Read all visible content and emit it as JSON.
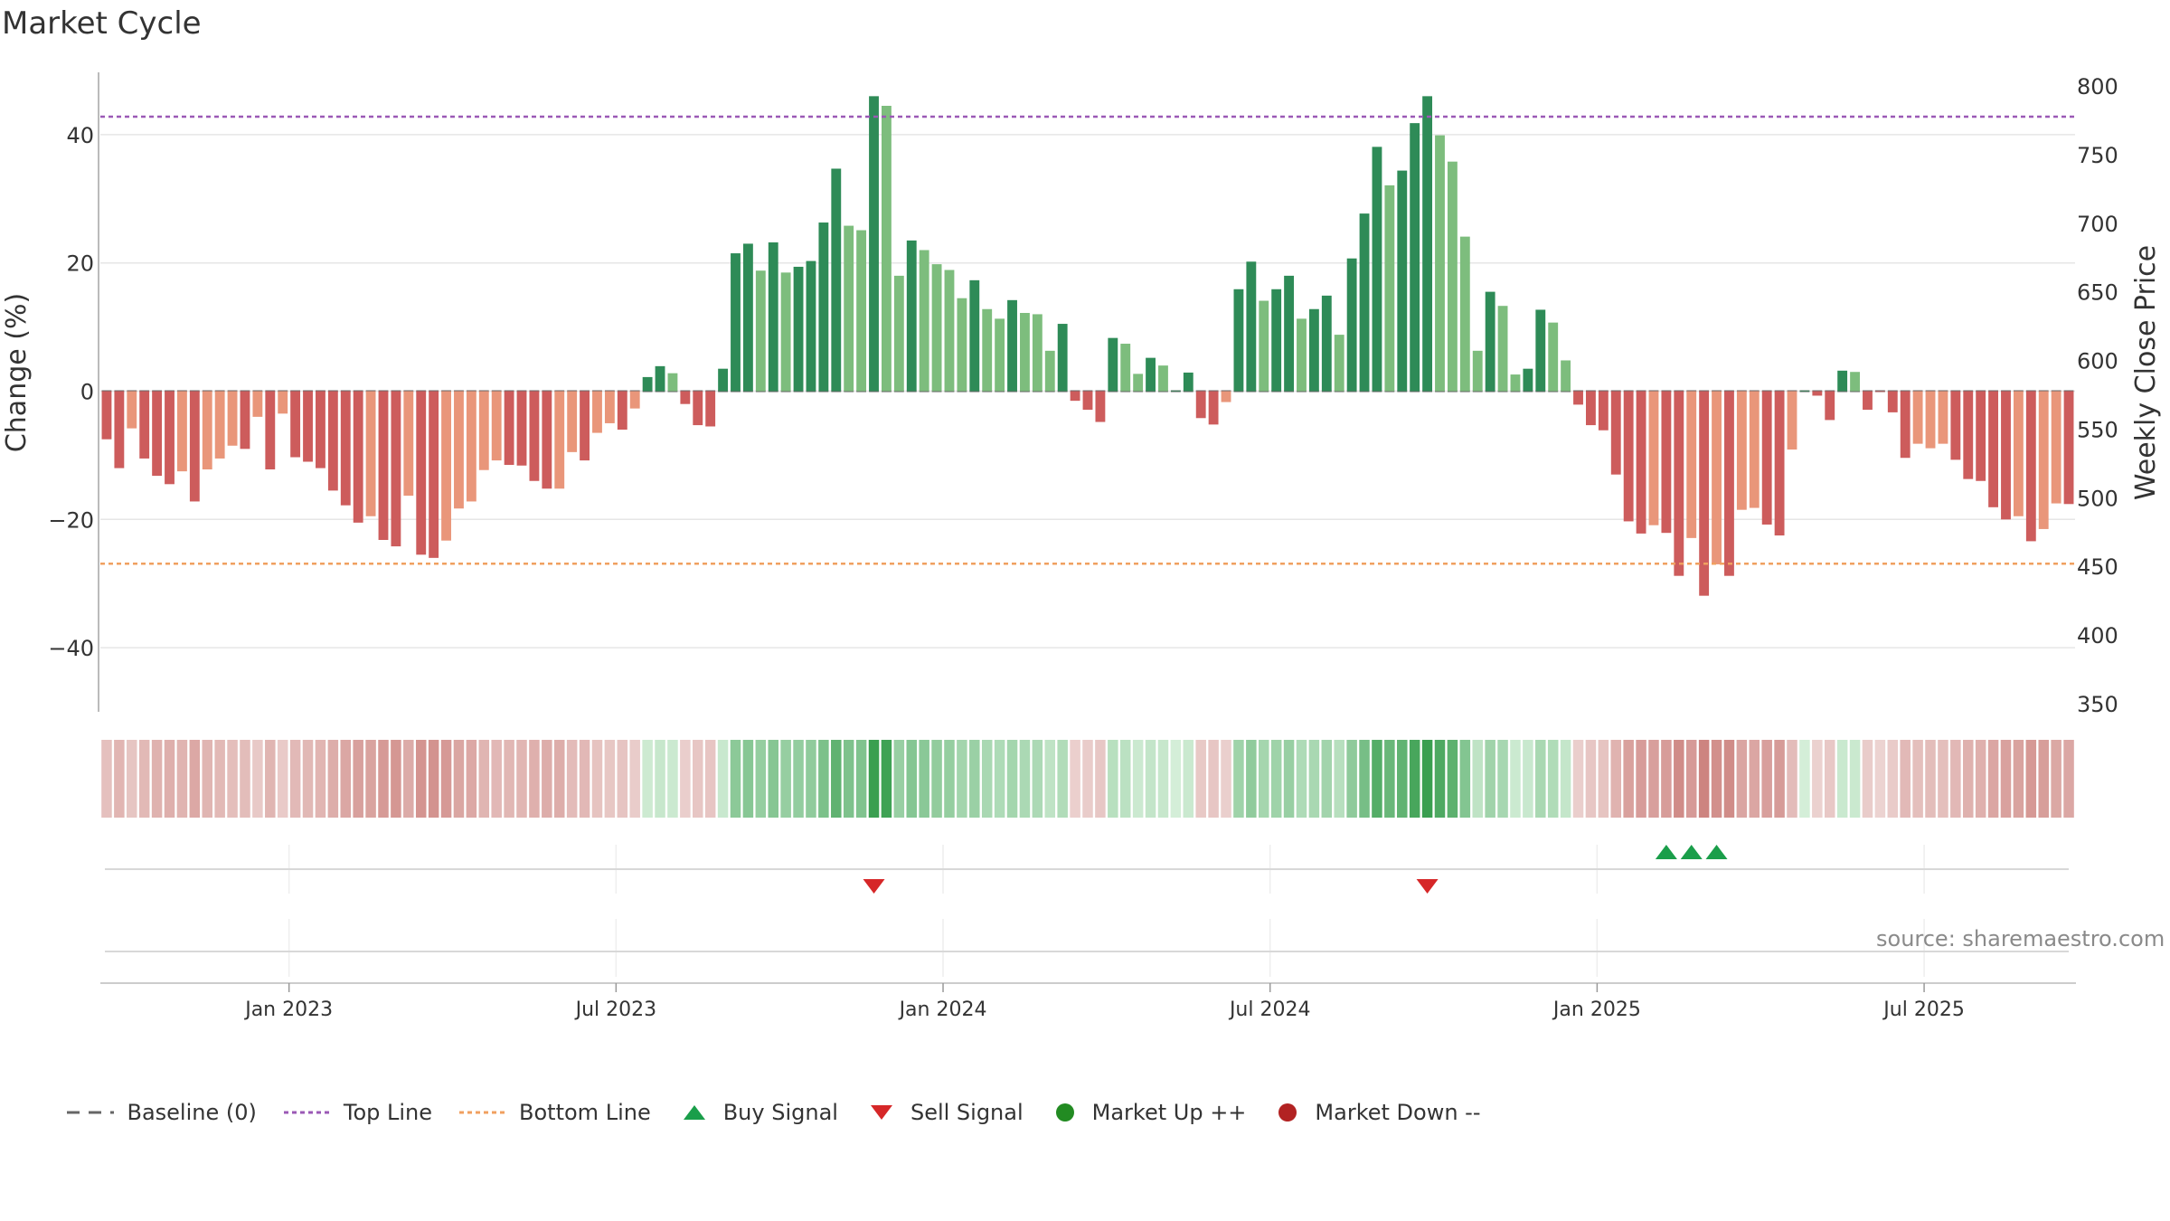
{
  "title": "Market Cycle",
  "source": "source: sharemaestro.com",
  "legend": {
    "baseline": "Baseline (0)",
    "top_line": "Top Line",
    "bottom_line": "Bottom Line",
    "buy": "Buy Signal",
    "sell": "Sell Signal",
    "up": "Market Up ++",
    "down": "Market Down --"
  },
  "colors": {
    "dark_green": "#2e8b57",
    "light_green": "#7dbd7d",
    "dark_red": "#cd5c5c",
    "light_red": "#e9967a",
    "top_line": "#9b59b6",
    "bottom_line": "#f0a060",
    "buy": "#1a9e4a",
    "sell": "#d62728",
    "up": "#228b22",
    "down": "#b22222"
  },
  "chart_data": {
    "type": "bar",
    "ylabel_left": "Change (%)",
    "ylabel_right": "Weekly Close Price",
    "ylim_left": [
      -50,
      50
    ],
    "ylim_right": [
      350,
      800
    ],
    "yticks_left": [
      40,
      20,
      0,
      -20,
      -40
    ],
    "yticks_right": [
      800,
      750,
      700,
      650,
      600,
      550,
      500,
      450,
      400,
      350
    ],
    "ytick_labels_left": [
      "40",
      "20",
      "0",
      "−20",
      "−40"
    ],
    "top_line": 42.8,
    "bottom_line": -26.9,
    "grid": true,
    "x_tick_labels": [
      "Jan 2023",
      "Jul 2023",
      "Jan 2024",
      "Jul 2024",
      "Jan 2025",
      "Jul 2025"
    ],
    "x_tick_week_index": [
      15,
      41,
      67,
      93,
      119,
      145
    ],
    "series": [
      {
        "values": [
          -7.5,
          -12,
          -5.8,
          -10.5,
          -13.2,
          -14.5,
          -12.5,
          -17.2,
          -12.2,
          -10.5,
          -8.5,
          -9,
          -4,
          -12.2,
          -3.5,
          -10.3,
          -11,
          -12,
          -15.5,
          -17.8,
          -20.5,
          -19.5,
          -23.2,
          -24.2,
          -16.3,
          -25.5,
          -26,
          -23.3,
          -18.3,
          -17.2,
          -12.3,
          -10.8,
          -11.5,
          -11.6,
          -14,
          -15.2,
          -15.2,
          -9.5,
          -10.8,
          -6.5,
          -5,
          -6,
          -2.7,
          2.2,
          3.9,
          2.8,
          -2,
          -5.3,
          -5.5,
          3.5,
          21.5,
          23,
          18.8,
          23.2,
          18.5,
          19.4,
          20.3,
          26.3,
          34.7,
          25.8,
          25.1,
          46,
          44.5,
          18,
          23.5,
          22,
          19.8,
          18.9,
          14.5,
          17.3,
          12.8,
          11.3,
          14.2,
          12.2,
          12,
          6.3,
          10.5,
          -1.5,
          -2.9,
          -4.8,
          8.3,
          7.4,
          2.7,
          5.2,
          4,
          0.1,
          2.9,
          -4.2,
          -5.2,
          -1.7,
          15.9,
          20.2,
          14.1,
          15.9,
          18,
          11.3,
          12.8,
          14.9,
          8.8,
          20.7,
          27.7,
          38.1,
          32.1,
          34.4,
          41.8,
          46,
          39.9,
          35.8,
          24.1,
          6.3,
          15.5,
          13.3,
          2.6,
          3.5,
          12.7,
          10.7,
          4.8,
          -2.1,
          -5.3,
          -6.1,
          -13,
          -20.3,
          -22.2,
          -20.9,
          -22.1,
          -28.8,
          -22.9,
          -31.9,
          -27,
          -28.8,
          -18.5,
          -18.2,
          -20.8,
          -22.5,
          -9.1,
          0.1,
          -0.7,
          -4.5,
          3.2,
          3,
          -2.9,
          -0.1,
          -3.3,
          -10.4,
          -8.2,
          -8.9,
          -8.2,
          -10.7,
          -13.7,
          -14,
          -18.1,
          -20,
          -19.5,
          -23.4,
          -21.5,
          -17.5,
          -17.6
        ],
        "shade": [
          "d",
          "d",
          "l",
          "d",
          "d",
          "d",
          "l",
          "d",
          "l",
          "l",
          "l",
          "d",
          "l",
          "d",
          "l",
          "d",
          "d",
          "d",
          "d",
          "d",
          "d",
          "l",
          "d",
          "d",
          "l",
          "d",
          "d",
          "l",
          "l",
          "l",
          "l",
          "l",
          "d",
          "d",
          "d",
          "d",
          "l",
          "l",
          "d",
          "l",
          "l",
          "d",
          "l",
          "d",
          "d",
          "l",
          "d",
          "d",
          "d",
          "d",
          "d",
          "d",
          "l",
          "d",
          "l",
          "d",
          "d",
          "d",
          "d",
          "l",
          "l",
          "d",
          "l",
          "l",
          "d",
          "l",
          "l",
          "l",
          "l",
          "d",
          "l",
          "l",
          "d",
          "l",
          "l",
          "l",
          "d",
          "d",
          "d",
          "d",
          "d",
          "l",
          "l",
          "d",
          "l",
          "d",
          "d",
          "d",
          "d",
          "l",
          "d",
          "d",
          "l",
          "d",
          "d",
          "l",
          "d",
          "d",
          "l",
          "d",
          "d",
          "d",
          "l",
          "d",
          "d",
          "d",
          "l",
          "l",
          "l",
          "l",
          "d",
          "l",
          "l",
          "d",
          "d",
          "l",
          "l",
          "d",
          "d",
          "d",
          "d",
          "d",
          "d",
          "l",
          "d",
          "d",
          "l",
          "d",
          "l",
          "d",
          "l",
          "l",
          "d",
          "d",
          "l",
          "d",
          "d",
          "d",
          "d",
          "l",
          "d",
          "d",
          "d",
          "d",
          "l",
          "l",
          "l",
          "d",
          "d",
          "d",
          "d",
          "d",
          "l",
          "d",
          "l",
          "l",
          "d"
        ]
      }
    ],
    "buy_signal_weeks": [
      124,
      126,
      128
    ],
    "sell_signal_weeks": [
      61,
      105
    ],
    "market_up_weeks": [],
    "market_down_weeks": []
  }
}
